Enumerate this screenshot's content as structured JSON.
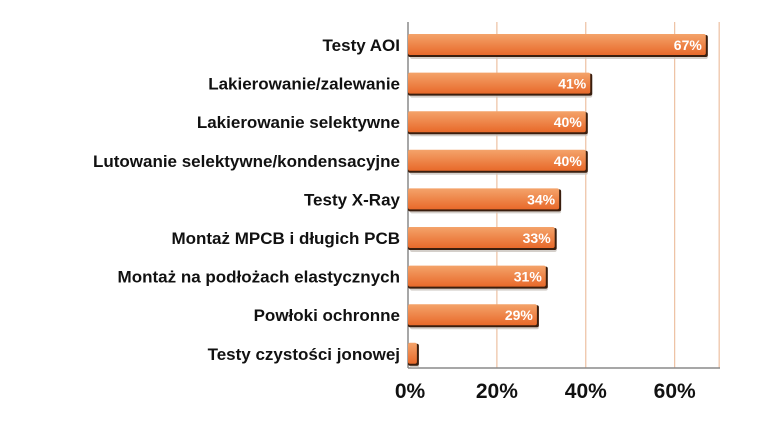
{
  "chart_data": {
    "type": "bar",
    "orientation": "horizontal",
    "categories": [
      "Testy AOI",
      "Lakierowanie/zalewanie",
      "Lakierowanie selektywne",
      "Lutowanie selektywne/kondensacyjne",
      "Testy X-Ray",
      "Montaż MPCB i długich PCB",
      "Montaż na podłożach elastycznych",
      "Powłoki ochronne",
      "Testy czystości jonowej"
    ],
    "values": [
      67,
      41,
      40,
      40,
      34,
      33,
      31,
      29,
      2
    ],
    "data_labels": [
      "67%",
      "41%",
      "40%",
      "40%",
      "34%",
      "33%",
      "31%",
      "29%",
      ""
    ],
    "xlim": [
      0,
      70
    ],
    "xticks": [
      0,
      20,
      40,
      60
    ],
    "xtick_labels": [
      "0%",
      "20%",
      "40%",
      "60%"
    ],
    "grid": "vertical",
    "colors": {
      "bar_light": "#f4a36a",
      "bar_dark": "#e8692a",
      "bar_edge": "#3a1e0e",
      "shadow": "#c9c3bd",
      "grid": "#e9b48f",
      "axis": "#8a8a8a"
    }
  }
}
